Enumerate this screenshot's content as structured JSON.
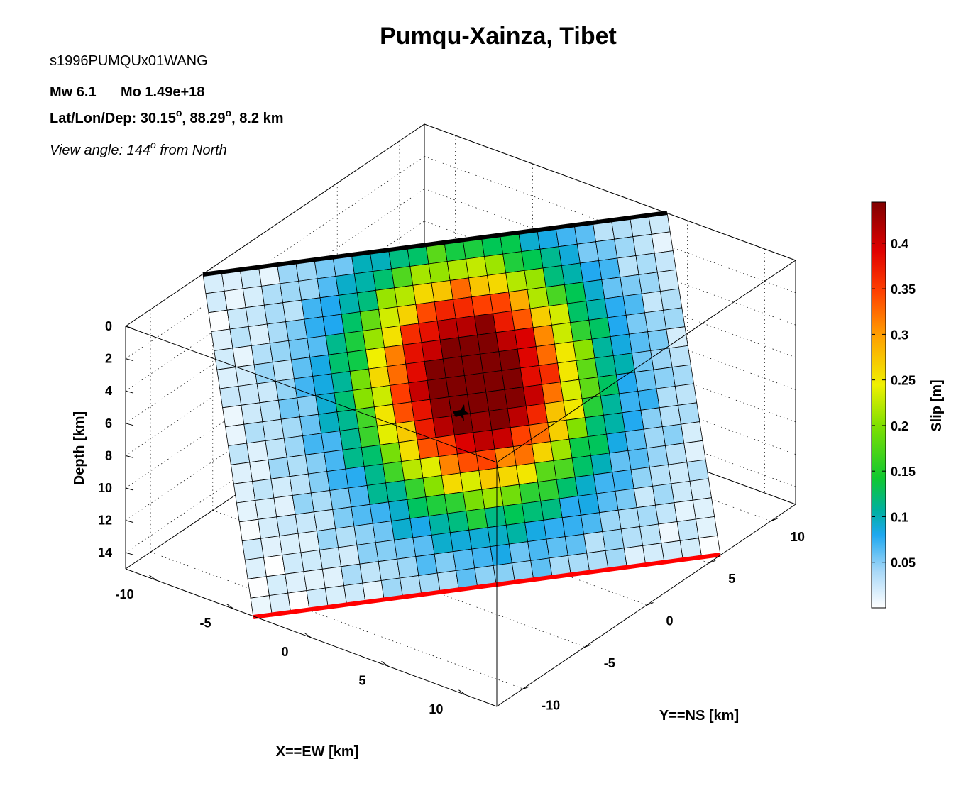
{
  "header": {
    "title": "Pumqu-Xainza, Tibet",
    "event_id": "s1996PUMQUx01WANG",
    "magnitude": "Mw 6.1",
    "moment": "Mo 1.49e+18",
    "location_prefix": "Lat/Lon/Dep: 30.15",
    "location_lon": ", 88.29",
    "location_dep": ", 8.2 km",
    "degree_mark": "o",
    "view_prefix": "View angle: 144",
    "view_suffix": " from North"
  },
  "chart_data": {
    "type": "heatmap",
    "title": "Pumqu-Xainza, Tibet",
    "view_angle_deg": 144,
    "axes": {
      "depth": {
        "label": "Depth [km]",
        "ticks": [
          "0",
          "2",
          "4",
          "6",
          "8",
          "10",
          "12",
          "14"
        ],
        "range": [
          0,
          15
        ]
      },
      "x": {
        "label": "X==EW [km]",
        "ticks": [
          "-10",
          "-5",
          "0",
          "5",
          "10"
        ],
        "range": [
          -12,
          12
        ]
      },
      "y": {
        "label": "Y==NS [km]",
        "ticks": [
          "-10",
          "-5",
          "0",
          "5",
          "10"
        ],
        "range": [
          -12,
          12
        ]
      },
      "grid": true
    },
    "colorbar": {
      "label": "Slip [m]",
      "ticks": [
        "0.05",
        "0.1",
        "0.15",
        "0.2",
        "0.25",
        "0.3",
        "0.35",
        "0.4"
      ],
      "range": [
        0,
        0.445
      ]
    },
    "fault": {
      "cols": 25,
      "rows": 18,
      "top_edge_color": "#000000",
      "bottom_edge_color": "#ff0000",
      "hypocenter": {
        "col": 13.6,
        "row": 6.9
      },
      "slip_model": {
        "peak": 0.44,
        "center_col": 13,
        "center_row": 6.8,
        "sigma_col": 4.5,
        "sigma_row": 4.8,
        "background": 0.06
      }
    }
  }
}
